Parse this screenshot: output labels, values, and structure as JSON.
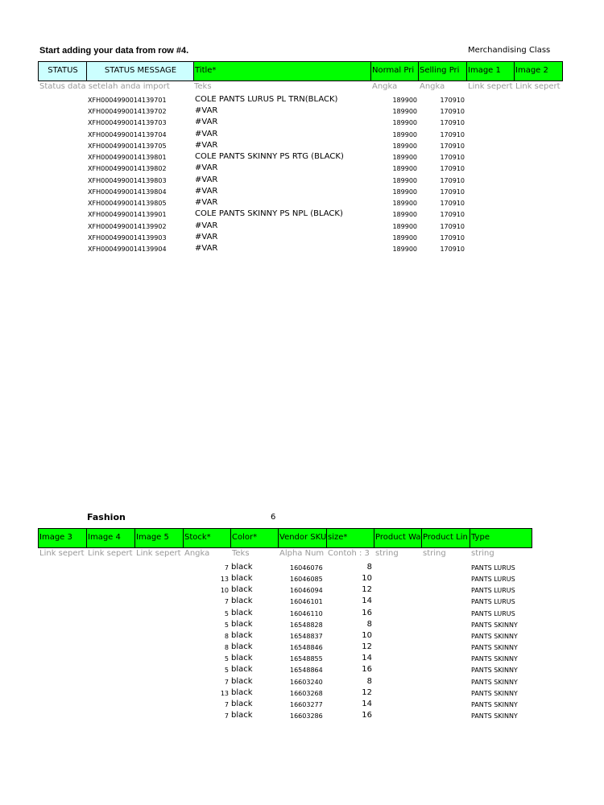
{
  "top": {
    "instruction": "Start adding your data from row #4.",
    "merch_label": "Merchandising Class"
  },
  "table1": {
    "headers": [
      "STATUS",
      "STATUS MESSAGE",
      "Title*",
      "Normal Pri",
      "Selling Pri",
      "Image 1",
      "Image 2"
    ],
    "hints": [
      "Status data setelah anda import",
      "Teks",
      "Angka",
      "Angka",
      "Link sepert",
      "Link sepert"
    ],
    "rows": [
      [
        "XFH0004990014139701",
        "COLE PANTS LURUS PL TRN(BLACK)",
        189900,
        170910
      ],
      [
        "XFH0004990014139702",
        "#VAR",
        189900,
        170910
      ],
      [
        "XFH0004990014139703",
        "#VAR",
        189900,
        170910
      ],
      [
        "XFH0004990014139704",
        "#VAR",
        189900,
        170910
      ],
      [
        "XFH0004990014139705",
        "#VAR",
        189900,
        170910
      ],
      [
        "XFH0004990014139801",
        "COLE PANTS SKINNY PS RTG (BLACK)",
        189900,
        170910
      ],
      [
        "XFH0004990014139802",
        "#VAR",
        189900,
        170910
      ],
      [
        "XFH0004990014139803",
        "#VAR",
        189900,
        170910
      ],
      [
        "XFH0004990014139804",
        "#VAR",
        189900,
        170910
      ],
      [
        "XFH0004990014139805",
        "#VAR",
        189900,
        170910
      ],
      [
        "XFH0004990014139901",
        "COLE PANTS SKINNY PS NPL (BLACK)",
        189900,
        170910
      ],
      [
        "XFH0004990014139902",
        "#VAR",
        189900,
        170910
      ],
      [
        "XFH0004990014139903",
        "#VAR",
        189900,
        170910
      ],
      [
        "XFH0004990014139904",
        "#VAR",
        189900,
        170910
      ]
    ]
  },
  "section2": {
    "label": "Fashion",
    "number": 6
  },
  "table2": {
    "headers": [
      "Image 3",
      "Image 4",
      "Image 5",
      "Stock*",
      "Color*",
      "Vendor SKU",
      "size*",
      "Product Wa",
      "Product Lin",
      "Type"
    ],
    "hints": [
      "Link sepert",
      "Link sepert",
      "Link sepert",
      "Angka",
      "Teks",
      "Alpha Num",
      "Contoh : 3",
      "string",
      "string",
      "string"
    ],
    "rows": [
      [
        7,
        "black",
        16046076,
        8,
        "PANTS LURUS"
      ],
      [
        13,
        "black",
        16046085,
        10,
        "PANTS LURUS"
      ],
      [
        10,
        "black",
        16046094,
        12,
        "PANTS LURUS"
      ],
      [
        7,
        "black",
        16046101,
        14,
        "PANTS LURUS"
      ],
      [
        5,
        "black",
        16046110,
        16,
        "PANTS LURUS"
      ],
      [
        5,
        "black",
        16548828,
        8,
        "PANTS SKINNY"
      ],
      [
        8,
        "black",
        16548837,
        10,
        "PANTS SKINNY"
      ],
      [
        8,
        "black",
        16548846,
        12,
        "PANTS SKINNY"
      ],
      [
        5,
        "black",
        16548855,
        14,
        "PANTS SKINNY"
      ],
      [
        5,
        "black",
        16548864,
        16,
        "PANTS SKINNY"
      ],
      [
        7,
        "black",
        16603240,
        8,
        "PANTS SKINNY"
      ],
      [
        13,
        "black",
        16603268,
        12,
        "PANTS SKINNY"
      ],
      [
        7,
        "black",
        16603277,
        14,
        "PANTS SKINNY"
      ],
      [
        7,
        "black",
        16603286,
        16,
        "PANTS SKINNY"
      ]
    ]
  }
}
